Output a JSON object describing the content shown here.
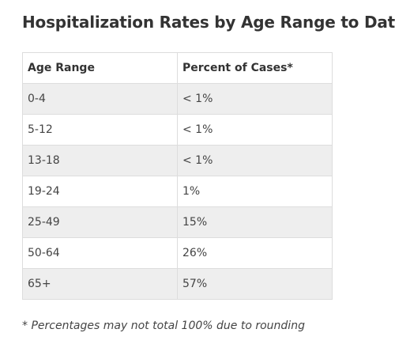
{
  "title": "Hospitalization Rates by Age Range to Date",
  "table": {
    "headers": [
      "Age Range",
      "Percent of Cases*"
    ],
    "rows": [
      [
        "0-4",
        "< 1%"
      ],
      [
        "5-12",
        "< 1%"
      ],
      [
        "13-18",
        "< 1%"
      ],
      [
        "19-24",
        "1%"
      ],
      [
        "25-49",
        "15%"
      ],
      [
        "50-64",
        "26%"
      ],
      [
        "65+",
        "57%"
      ]
    ]
  },
  "footnote": "* Percentages may not total 100% due to rounding",
  "colors": {
    "text": "#333333",
    "stripe": "#eeeeee",
    "border": "#dddddd"
  }
}
